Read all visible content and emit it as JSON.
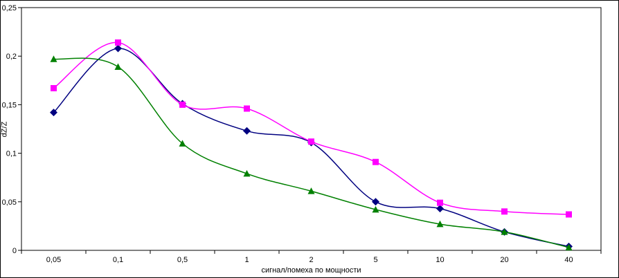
{
  "chart_data": {
    "type": "line",
    "title": "",
    "xlabel": "сигнал/помеха по мощности",
    "ylabel": "dZ/Z",
    "categories": [
      "0,05",
      "0,1",
      "0,5",
      "1",
      "2",
      "5",
      "10",
      "20",
      "40"
    ],
    "series": [
      {
        "name": "series-1",
        "color": "#000080",
        "marker": "diamond",
        "values": [
          0.142,
          0.208,
          0.151,
          0.123,
          0.111,
          0.05,
          0.043,
          0.019,
          0.004
        ]
      },
      {
        "name": "series-2",
        "color": "#FF00FF",
        "marker": "square",
        "values": [
          0.167,
          0.214,
          0.15,
          0.146,
          0.112,
          0.091,
          0.049,
          0.04,
          0.037
        ]
      },
      {
        "name": "series-3",
        "color": "#008000",
        "marker": "triangle",
        "values": [
          0.197,
          0.189,
          0.11,
          0.079,
          0.061,
          0.042,
          0.027,
          0.019,
          0.003
        ]
      }
    ],
    "ylim": [
      0,
      0.25
    ],
    "yticks": [
      0,
      0.05,
      0.1,
      0.15,
      0.2,
      0.25
    ],
    "ytick_labels": [
      "0",
      "0,05",
      "0,1",
      "0,15",
      "0,2",
      "0,25"
    ],
    "grid": false,
    "legend": "none",
    "smooth": true
  }
}
